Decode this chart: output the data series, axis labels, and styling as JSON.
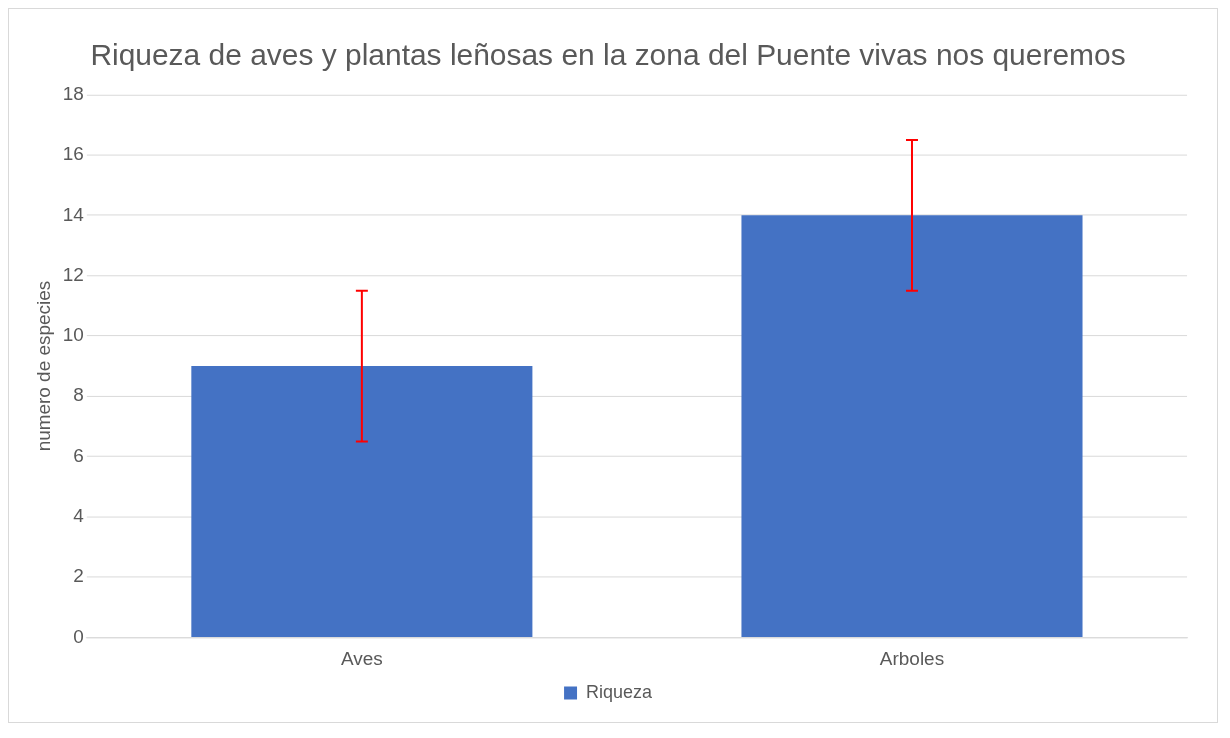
{
  "chart_data": {
    "type": "bar",
    "title": "Riqueza de aves y plantas leñosas en la zona del Puente vivas nos queremos",
    "ylabel": "numero de especies",
    "categories": [
      "Aves",
      "Arboles"
    ],
    "series": [
      {
        "name": "Riqueza",
        "color": "#4472c4",
        "values": [
          9,
          14
        ],
        "errors": [
          2.5,
          2.5
        ]
      }
    ],
    "ylim": [
      0,
      18
    ],
    "yticks": [
      0,
      2,
      4,
      6,
      8,
      10,
      12,
      14,
      16,
      18
    ],
    "grid": "y",
    "legend": "bottom"
  }
}
